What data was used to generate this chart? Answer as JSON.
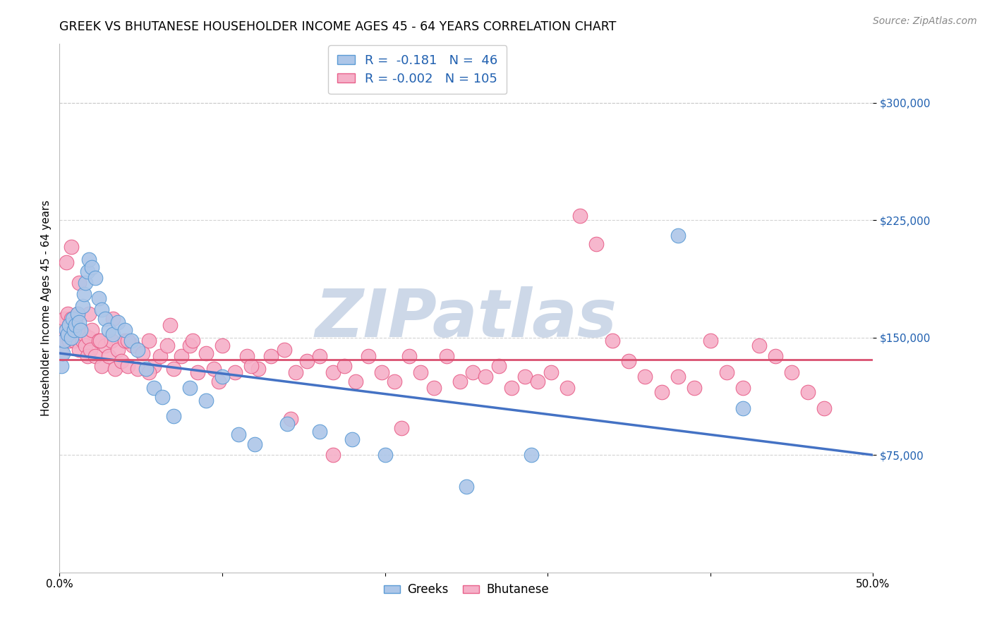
{
  "title": "GREEK VS BHUTANESE HOUSEHOLDER INCOME AGES 45 - 64 YEARS CORRELATION CHART",
  "source": "Source: ZipAtlas.com",
  "ylabel": "Householder Income Ages 45 - 64 years",
  "xlim": [
    0.0,
    0.5
  ],
  "ylim": [
    0,
    337500
  ],
  "yticks": [
    75000,
    150000,
    225000,
    300000
  ],
  "ytick_labels": [
    "$75,000",
    "$150,000",
    "$225,000",
    "$300,000"
  ],
  "xticks": [
    0.0,
    0.1,
    0.2,
    0.3,
    0.4,
    0.5
  ],
  "xtick_labels": [
    "0.0%",
    "",
    "",
    "",
    "",
    "50.0%"
  ],
  "greek_R": -0.181,
  "greek_N": 46,
  "bhutanese_R": -0.002,
  "bhutanese_N": 105,
  "greek_color": "#adc6e8",
  "bhutanese_color": "#f5b0c8",
  "greek_edge_color": "#5b9bd5",
  "bhutanese_edge_color": "#e8608a",
  "greek_line_color": "#4472c4",
  "bhutanese_line_color": "#d95070",
  "legend_text_color": "#2060b0",
  "watermark_text": "ZIPatlas",
  "watermark_color": "#cdd8e8",
  "background_color": "#ffffff",
  "grid_color": "#c8c8c8",
  "title_fontsize": 12.5,
  "source_fontsize": 10,
  "axis_label_fontsize": 11,
  "tick_fontsize": 11,
  "legend_fontsize": 13,
  "greek_line_y0": 140000,
  "greek_line_y1": 75000,
  "bhutanese_line_y0": 136000,
  "bhutanese_line_y1": 136000,
  "greek_x": [
    0.001,
    0.002,
    0.003,
    0.004,
    0.005,
    0.006,
    0.007,
    0.008,
    0.009,
    0.01,
    0.011,
    0.012,
    0.013,
    0.014,
    0.015,
    0.016,
    0.017,
    0.018,
    0.02,
    0.022,
    0.024,
    0.026,
    0.028,
    0.03,
    0.033,
    0.036,
    0.04,
    0.044,
    0.048,
    0.053,
    0.058,
    0.063,
    0.07,
    0.08,
    0.09,
    0.1,
    0.11,
    0.12,
    0.14,
    0.16,
    0.18,
    0.2,
    0.25,
    0.29,
    0.38,
    0.42
  ],
  "greek_y": [
    132000,
    140000,
    148000,
    155000,
    152000,
    158000,
    150000,
    162000,
    155000,
    158000,
    165000,
    160000,
    155000,
    170000,
    178000,
    185000,
    192000,
    200000,
    195000,
    188000,
    175000,
    168000,
    162000,
    155000,
    152000,
    160000,
    155000,
    148000,
    142000,
    130000,
    118000,
    112000,
    100000,
    118000,
    110000,
    125000,
    88000,
    82000,
    95000,
    90000,
    85000,
    75000,
    55000,
    75000,
    215000,
    105000
  ],
  "bhutanese_x": [
    0.001,
    0.002,
    0.003,
    0.003,
    0.004,
    0.005,
    0.006,
    0.006,
    0.007,
    0.008,
    0.009,
    0.01,
    0.011,
    0.012,
    0.013,
    0.014,
    0.015,
    0.016,
    0.017,
    0.018,
    0.019,
    0.02,
    0.022,
    0.024,
    0.026,
    0.028,
    0.03,
    0.032,
    0.034,
    0.036,
    0.038,
    0.04,
    0.042,
    0.045,
    0.048,
    0.051,
    0.055,
    0.058,
    0.062,
    0.066,
    0.07,
    0.075,
    0.08,
    0.085,
    0.09,
    0.095,
    0.1,
    0.108,
    0.115,
    0.122,
    0.13,
    0.138,
    0.145,
    0.152,
    0.16,
    0.168,
    0.175,
    0.182,
    0.19,
    0.198,
    0.206,
    0.215,
    0.222,
    0.23,
    0.238,
    0.246,
    0.254,
    0.262,
    0.27,
    0.278,
    0.286,
    0.294,
    0.302,
    0.312,
    0.32,
    0.33,
    0.34,
    0.35,
    0.36,
    0.37,
    0.38,
    0.39,
    0.4,
    0.41,
    0.42,
    0.43,
    0.44,
    0.45,
    0.46,
    0.47,
    0.004,
    0.007,
    0.012,
    0.018,
    0.025,
    0.033,
    0.042,
    0.055,
    0.068,
    0.082,
    0.098,
    0.118,
    0.142,
    0.168,
    0.21
  ],
  "bhutanese_y": [
    140000,
    152000,
    162000,
    148000,
    155000,
    165000,
    148000,
    158000,
    162000,
    155000,
    148000,
    160000,
    165000,
    142000,
    155000,
    148000,
    152000,
    145000,
    138000,
    150000,
    142000,
    155000,
    138000,
    148000,
    132000,
    145000,
    138000,
    148000,
    130000,
    142000,
    135000,
    148000,
    132000,
    145000,
    130000,
    140000,
    148000,
    132000,
    138000,
    145000,
    130000,
    138000,
    145000,
    128000,
    140000,
    130000,
    145000,
    128000,
    138000,
    130000,
    138000,
    142000,
    128000,
    135000,
    138000,
    128000,
    132000,
    122000,
    138000,
    128000,
    122000,
    138000,
    128000,
    118000,
    138000,
    122000,
    128000,
    125000,
    132000,
    118000,
    125000,
    122000,
    128000,
    118000,
    228000,
    210000,
    148000,
    135000,
    125000,
    115000,
    125000,
    118000,
    148000,
    128000,
    118000,
    145000,
    138000,
    128000,
    115000,
    105000,
    198000,
    208000,
    185000,
    165000,
    148000,
    162000,
    148000,
    128000,
    158000,
    148000,
    122000,
    132000,
    98000,
    75000,
    92000
  ]
}
